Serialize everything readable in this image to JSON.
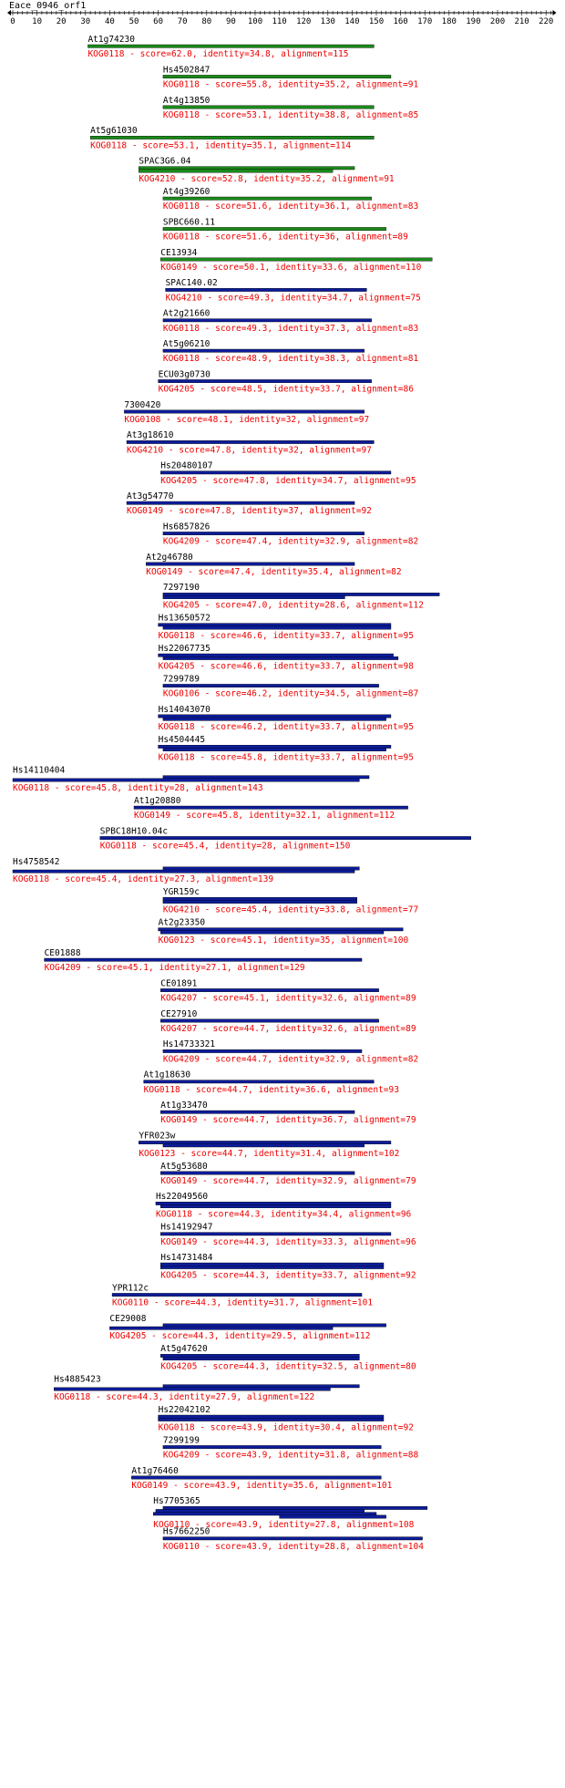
{
  "query": {
    "name": "Eace_0946_orf1",
    "length": 222,
    "ruler_ticks": [
      0,
      10,
      20,
      30,
      40,
      50,
      60,
      70,
      80,
      90,
      100,
      110,
      120,
      130,
      140,
      150,
      160,
      170,
      180,
      190,
      200,
      210,
      220
    ]
  },
  "colors": {
    "good_bar": "#1a8a1a",
    "weak_bar": "#0c1c9a",
    "score_text": "#ee0000",
    "name_text": "#000000"
  },
  "hits": [
    {
      "name": "At1g74230",
      "kog": "KOG0118",
      "score": "62.0",
      "identity": "34.8",
      "alignment": "115",
      "bar_class": "good",
      "segments": [
        [
          31,
          149
        ]
      ]
    },
    {
      "name": "Hs4502847",
      "kog": "KOG0118",
      "score": "55.8",
      "identity": "35.2",
      "alignment": "91",
      "bar_class": "good",
      "segments": [
        [
          62,
          156
        ]
      ]
    },
    {
      "name": "At4g13850",
      "kog": "KOG0118",
      "score": "53.1",
      "identity": "38.8",
      "alignment": "85",
      "bar_class": "good",
      "segments": [
        [
          62,
          149
        ]
      ]
    },
    {
      "name": "At5g61030",
      "kog": "KOG0118",
      "score": "53.1",
      "identity": "35.1",
      "alignment": "114",
      "bar_class": "good",
      "segments": [
        [
          32,
          149
        ]
      ]
    },
    {
      "name": "SPAC3G6.04",
      "kog": "KOG4210",
      "score": "52.8",
      "identity": "35.2",
      "alignment": "91",
      "bar_class": "good",
      "segments": [
        [
          52,
          141
        ],
        [
          52,
          132
        ]
      ]
    },
    {
      "name": "At4g39260",
      "kog": "KOG0118",
      "score": "51.6",
      "identity": "36.1",
      "alignment": "83",
      "bar_class": "good",
      "segments": [
        [
          62,
          148
        ]
      ]
    },
    {
      "name": "SPBC660.11",
      "kog": "KOG0118",
      "score": "51.6",
      "identity": "36",
      "alignment": "89",
      "bar_class": "good",
      "segments": [
        [
          62,
          154
        ]
      ]
    },
    {
      "name": "CE13934",
      "kog": "KOG0149",
      "score": "50.1",
      "identity": "33.6",
      "alignment": "110",
      "bar_class": "good",
      "segments": [
        [
          61,
          173
        ]
      ]
    },
    {
      "name": "SPAC140.02",
      "kog": "KOG4210",
      "score": "49.3",
      "identity": "34.7",
      "alignment": "75",
      "bar_class": "weak",
      "segments": [
        [
          63,
          146
        ]
      ]
    },
    {
      "name": "At2g21660",
      "kog": "KOG0118",
      "score": "49.3",
      "identity": "37.3",
      "alignment": "83",
      "bar_class": "weak",
      "segments": [
        [
          62,
          148
        ]
      ]
    },
    {
      "name": "At5g06210",
      "kog": "KOG0118",
      "score": "48.9",
      "identity": "38.3",
      "alignment": "81",
      "bar_class": "weak",
      "segments": [
        [
          62,
          145
        ]
      ]
    },
    {
      "name": "ECU03g0730",
      "kog": "KOG4205",
      "score": "48.5",
      "identity": "33.7",
      "alignment": "86",
      "bar_class": "weak",
      "segments": [
        [
          60,
          148
        ]
      ]
    },
    {
      "name": "7300420",
      "kog": "KOG0108",
      "score": "48.1",
      "identity": "32",
      "alignment": "97",
      "bar_class": "weak",
      "segments": [
        [
          46,
          145
        ]
      ]
    },
    {
      "name": "At3g18610",
      "kog": "KOG4210",
      "score": "47.8",
      "identity": "32",
      "alignment": "97",
      "bar_class": "weak",
      "segments": [
        [
          47,
          149
        ]
      ]
    },
    {
      "name": "Hs20480107",
      "kog": "KOG4205",
      "score": "47.8",
      "identity": "34.7",
      "alignment": "95",
      "bar_class": "weak",
      "segments": [
        [
          61,
          156
        ]
      ]
    },
    {
      "name": "At3g54770",
      "kog": "KOG0149",
      "score": "47.8",
      "identity": "37",
      "alignment": "92",
      "bar_class": "weak",
      "segments": [
        [
          47,
          141
        ]
      ]
    },
    {
      "name": "Hs6857826",
      "kog": "KOG4209",
      "score": "47.4",
      "identity": "32.9",
      "alignment": "82",
      "bar_class": "weak",
      "segments": [
        [
          62,
          145
        ]
      ]
    },
    {
      "name": "At2g46780",
      "kog": "KOG0149",
      "score": "47.4",
      "identity": "35.4",
      "alignment": "82",
      "bar_class": "weak",
      "segments": [
        [
          55,
          141
        ]
      ]
    },
    {
      "name": "7297190",
      "kog": "KOG4205",
      "score": "47.0",
      "identity": "28.6",
      "alignment": "112",
      "bar_class": "weak",
      "segments": [
        [
          62,
          176
        ],
        [
          62,
          137
        ]
      ]
    },
    {
      "name": "Hs13650572",
      "kog": "KOG0118",
      "score": "46.6",
      "identity": "33.7",
      "alignment": "95",
      "bar_class": "weak",
      "segments": [
        [
          60,
          156
        ],
        [
          62,
          156
        ]
      ]
    },
    {
      "name": "Hs22067735",
      "kog": "KOG4205",
      "score": "46.6",
      "identity": "33.7",
      "alignment": "98",
      "bar_class": "weak",
      "segments": [
        [
          60,
          157
        ],
        [
          62,
          159
        ]
      ]
    },
    {
      "name": "7299789",
      "kog": "KOG0106",
      "score": "46.2",
      "identity": "34.5",
      "alignment": "87",
      "bar_class": "weak",
      "segments": [
        [
          62,
          151
        ]
      ]
    },
    {
      "name": "Hs14043070",
      "kog": "KOG0118",
      "score": "46.2",
      "identity": "33.7",
      "alignment": "95",
      "bar_class": "weak",
      "segments": [
        [
          60,
          156
        ],
        [
          62,
          154
        ]
      ]
    },
    {
      "name": "Hs4504445",
      "kog": "KOG0118",
      "score": "45.8",
      "identity": "33.7",
      "alignment": "95",
      "bar_class": "weak",
      "segments": [
        [
          60,
          156
        ],
        [
          62,
          154
        ]
      ]
    },
    {
      "name": "Hs14110404",
      "kog": "KOG0118",
      "score": "45.8",
      "identity": "28",
      "alignment": "143",
      "bar_class": "weak",
      "segments": [
        [
          62,
          147
        ],
        [
          0,
          143
        ]
      ]
    },
    {
      "name": "At1g20880",
      "kog": "KOG0149",
      "score": "45.8",
      "identity": "32.1",
      "alignment": "112",
      "bar_class": "weak",
      "segments": [
        [
          50,
          163
        ]
      ]
    },
    {
      "name": "SPBC18H10.04c",
      "kog": "KOG0118",
      "score": "45.4",
      "identity": "28",
      "alignment": "150",
      "bar_class": "weak",
      "segments": [
        [
          36,
          189
        ]
      ]
    },
    {
      "name": "Hs4758542",
      "kog": "KOG0118",
      "score": "45.4",
      "identity": "27.3",
      "alignment": "139",
      "bar_class": "weak",
      "segments": [
        [
          62,
          143
        ],
        [
          0,
          141
        ]
      ]
    },
    {
      "name": "YGR159c",
      "kog": "KOG4210",
      "score": "45.4",
      "identity": "33.8",
      "alignment": "77",
      "bar_class": "weak",
      "segments": [
        [
          62,
          142
        ],
        [
          62,
          142
        ]
      ]
    },
    {
      "name": "At2g23350",
      "kog": "KOG0123",
      "score": "45.1",
      "identity": "35",
      "alignment": "100",
      "bar_class": "weak",
      "segments": [
        [
          60,
          161
        ],
        [
          61,
          153
        ]
      ]
    },
    {
      "name": "CE01888",
      "kog": "KOG4209",
      "score": "45.1",
      "identity": "27.1",
      "alignment": "129",
      "bar_class": "weak",
      "segments": [
        [
          13,
          144
        ]
      ]
    },
    {
      "name": "CE01891",
      "kog": "KOG4207",
      "score": "45.1",
      "identity": "32.6",
      "alignment": "89",
      "bar_class": "weak",
      "segments": [
        [
          61,
          151
        ]
      ]
    },
    {
      "name": "CE27910",
      "kog": "KOG4207",
      "score": "44.7",
      "identity": "32.6",
      "alignment": "89",
      "bar_class": "weak",
      "segments": [
        [
          61,
          151
        ]
      ]
    },
    {
      "name": "Hs14733321",
      "kog": "KOG4209",
      "score": "44.7",
      "identity": "32.9",
      "alignment": "82",
      "bar_class": "weak",
      "segments": [
        [
          62,
          144
        ]
      ]
    },
    {
      "name": "At1g18630",
      "kog": "KOG0118",
      "score": "44.7",
      "identity": "36.6",
      "alignment": "93",
      "bar_class": "weak",
      "segments": [
        [
          54,
          149
        ]
      ]
    },
    {
      "name": "At1g33470",
      "kog": "KOG0149",
      "score": "44.7",
      "identity": "36.7",
      "alignment": "79",
      "bar_class": "weak",
      "segments": [
        [
          61,
          141
        ]
      ]
    },
    {
      "name": "YFR023w",
      "kog": "KOG0123",
      "score": "44.7",
      "identity": "31.4",
      "alignment": "102",
      "bar_class": "weak",
      "segments": [
        [
          52,
          156
        ],
        [
          62,
          145
        ]
      ]
    },
    {
      "name": "At5g53680",
      "kog": "KOG0149",
      "score": "44.7",
      "identity": "32.9",
      "alignment": "79",
      "bar_class": "weak",
      "segments": [
        [
          61,
          141
        ]
      ]
    },
    {
      "name": "Hs22049560",
      "kog": "KOG0118",
      "score": "44.3",
      "identity": "34.4",
      "alignment": "96",
      "bar_class": "weak",
      "segments": [
        [
          59,
          156
        ],
        [
          61,
          156
        ]
      ]
    },
    {
      "name": "Hs14192947",
      "kog": "KOG0149",
      "score": "44.3",
      "identity": "33.3",
      "alignment": "96",
      "bar_class": "weak",
      "segments": [
        [
          61,
          156
        ]
      ]
    },
    {
      "name": "Hs14731484",
      "kog": "KOG4205",
      "score": "44.3",
      "identity": "33.7",
      "alignment": "92",
      "bar_class": "weak",
      "segments": [
        [
          61,
          153
        ],
        [
          61,
          153
        ]
      ]
    },
    {
      "name": "YPR112c",
      "kog": "KOG0110",
      "score": "44.3",
      "identity": "31.7",
      "alignment": "101",
      "bar_class": "weak",
      "segments": [
        [
          41,
          144
        ]
      ]
    },
    {
      "name": "CE29008",
      "kog": "KOG4205",
      "score": "44.3",
      "identity": "29.5",
      "alignment": "112",
      "bar_class": "weak",
      "segments": [
        [
          62,
          154
        ],
        [
          40,
          132
        ]
      ]
    },
    {
      "name": "At5g47620",
      "kog": "KOG4205",
      "score": "44.3",
      "identity": "32.5",
      "alignment": "80",
      "bar_class": "weak",
      "segments": [
        [
          61,
          143
        ],
        [
          62,
          143
        ]
      ]
    },
    {
      "name": "Hs4885423",
      "kog": "KOG0118",
      "score": "44.3",
      "identity": "27.9",
      "alignment": "122",
      "bar_class": "weak",
      "segments": [
        [
          62,
          143
        ],
        [
          17,
          131
        ]
      ]
    },
    {
      "name": "Hs22042102",
      "kog": "KOG0118",
      "score": "43.9",
      "identity": "30.4",
      "alignment": "92",
      "bar_class": "weak",
      "segments": [
        [
          60,
          153
        ],
        [
          60,
          153
        ]
      ]
    },
    {
      "name": "7299199",
      "kog": "KOG4209",
      "score": "43.9",
      "identity": "31.8",
      "alignment": "88",
      "bar_class": "weak",
      "segments": [
        [
          62,
          152
        ]
      ]
    },
    {
      "name": "At1g76460",
      "kog": "KOG0149",
      "score": "43.9",
      "identity": "35.6",
      "alignment": "101",
      "bar_class": "weak",
      "segments": [
        [
          49,
          152
        ]
      ]
    },
    {
      "name": "Hs7705365",
      "kog": "KOG0110",
      "score": "43.9",
      "identity": "27.8",
      "alignment": "108",
      "bar_class": "weak",
      "segments": [
        [
          62,
          171
        ],
        [
          59,
          145
        ],
        [
          58,
          150
        ],
        [
          110,
          154
        ]
      ]
    },
    {
      "name": "Hs7662250",
      "kog": "KOG0110",
      "score": "43.9",
      "identity": "28.8",
      "alignment": "104",
      "bar_class": "weak",
      "segments": [
        [
          62,
          169
        ]
      ]
    }
  ]
}
